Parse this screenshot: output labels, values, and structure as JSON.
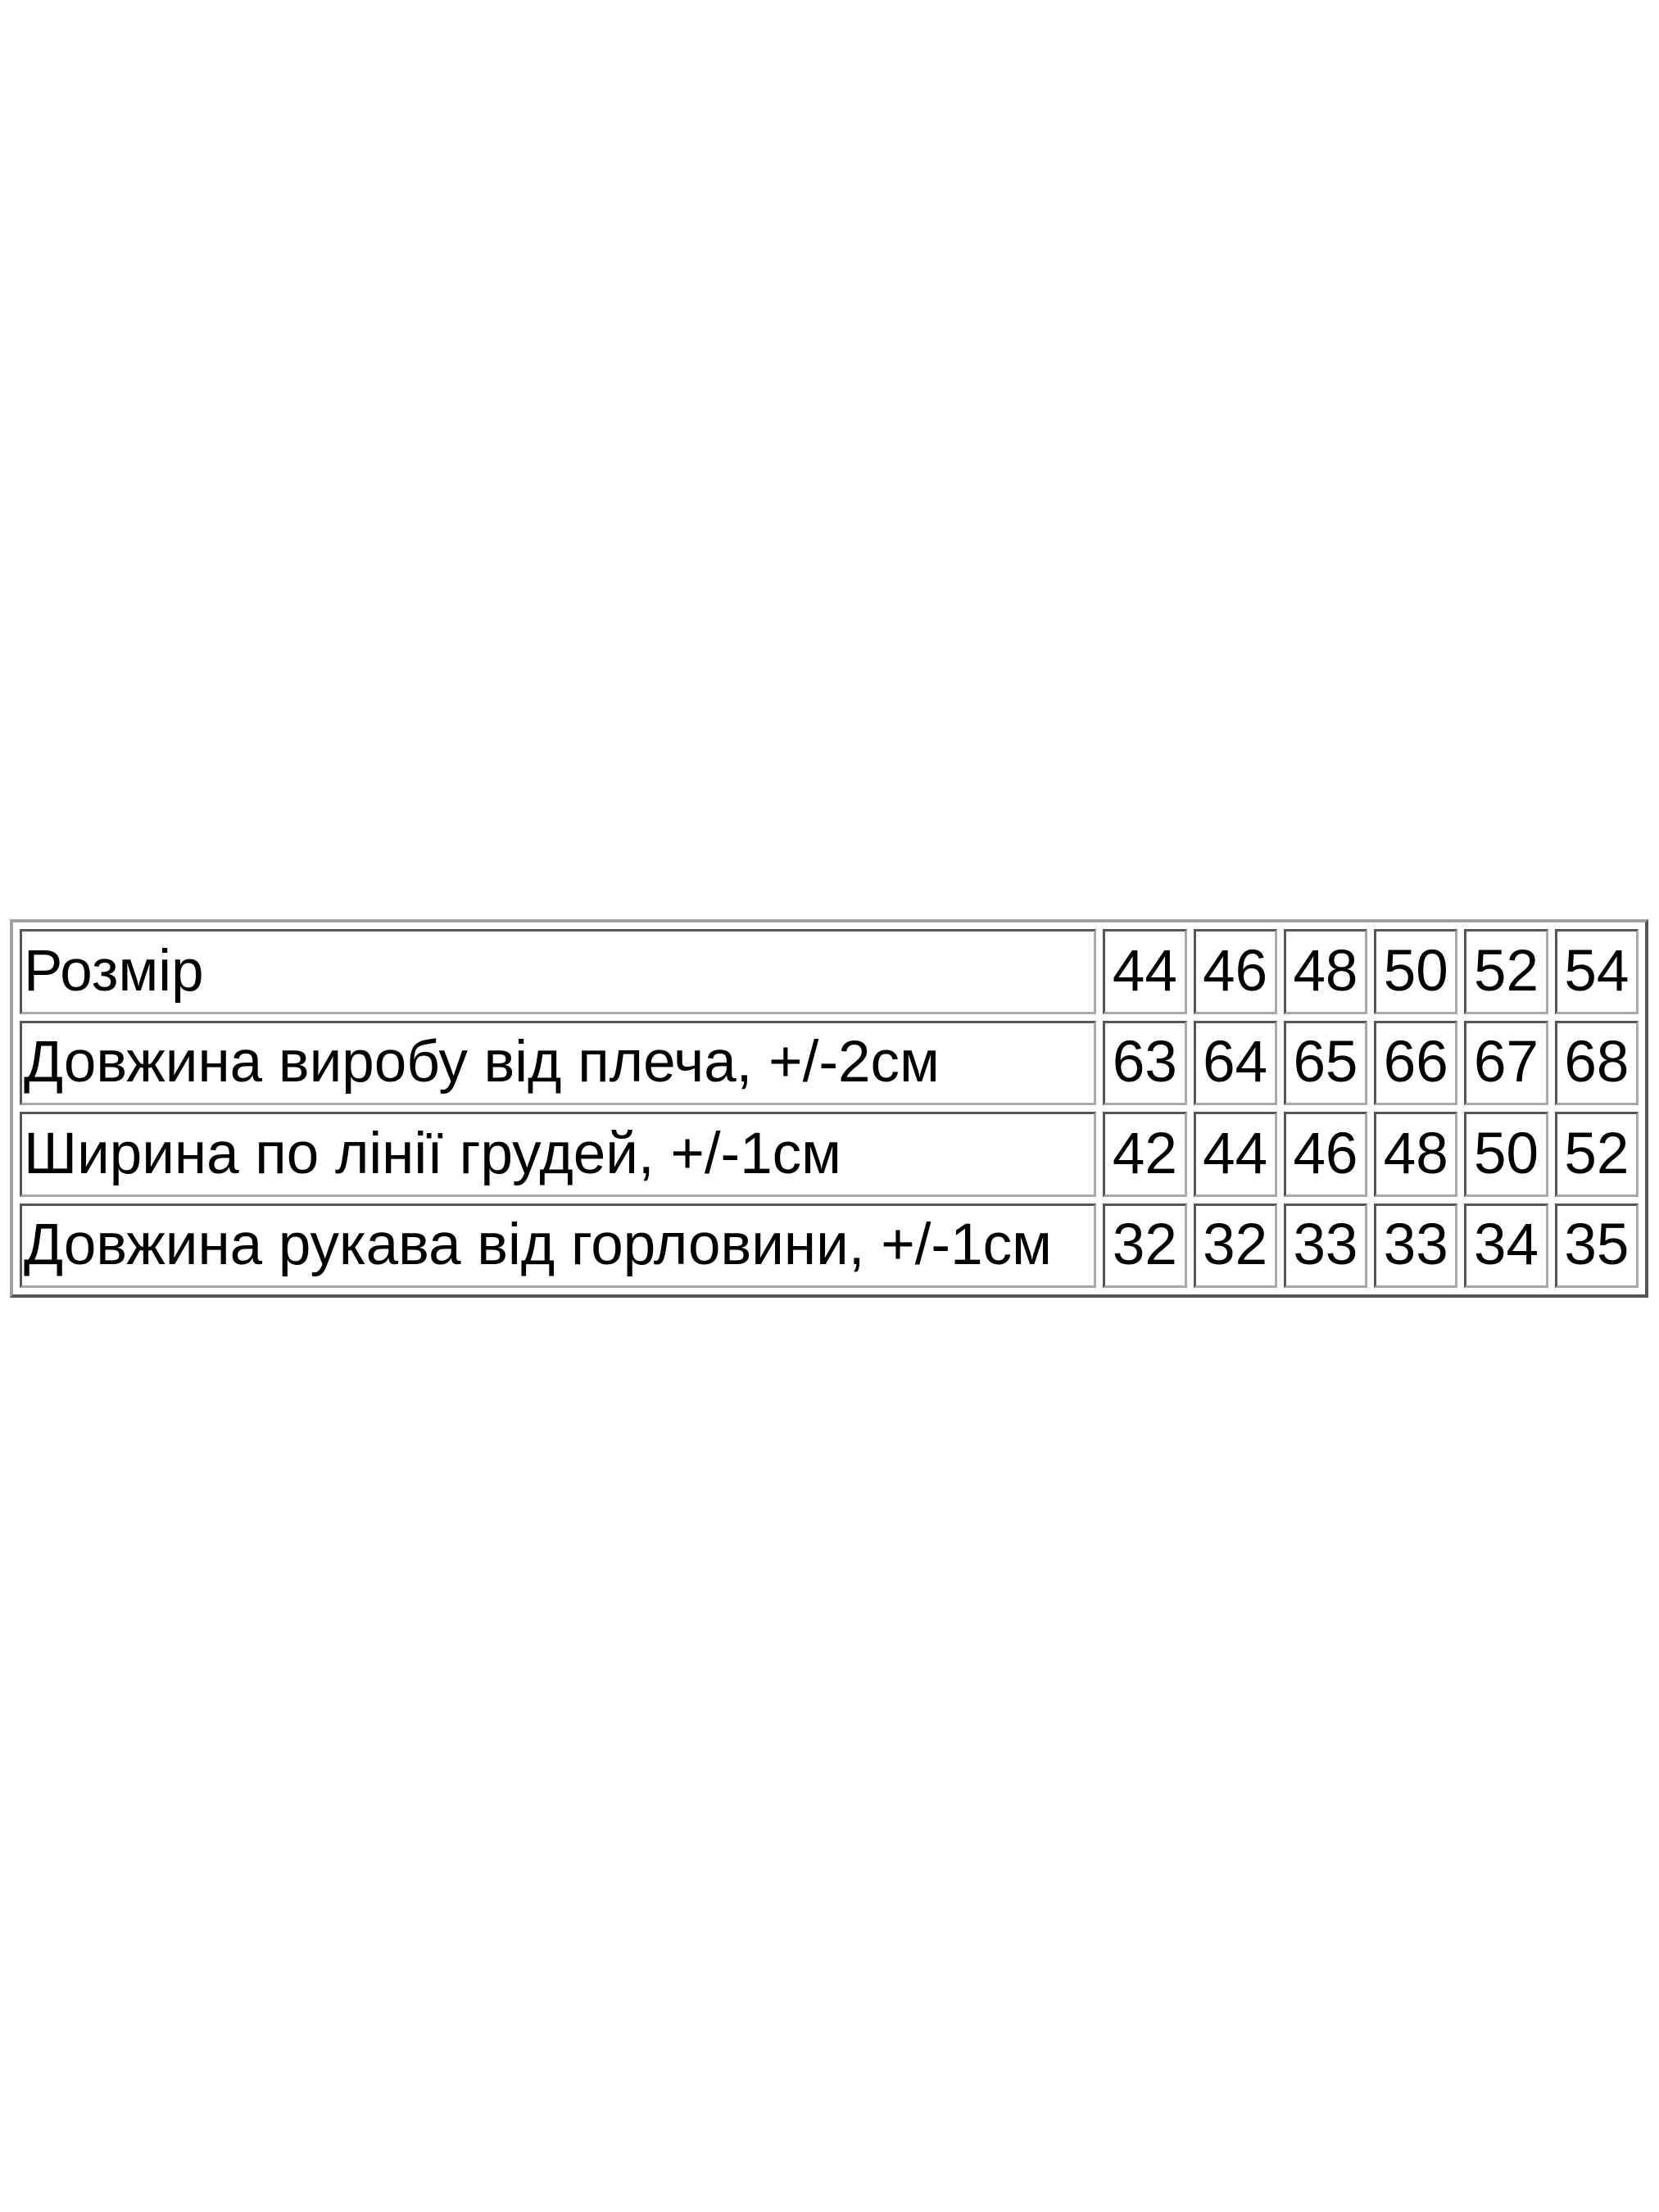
{
  "size_table": {
    "rows": [
      {
        "label": "Розмір",
        "values": [
          "44",
          "46",
          "48",
          "50",
          "52",
          "54"
        ]
      },
      {
        "label": "Довжина виробу від плеча, +/-2см",
        "values": [
          "63",
          "64",
          "65",
          "66",
          "67",
          "68"
        ]
      },
      {
        "label": "Ширина по лінії грудей, +/-1см",
        "values": [
          "42",
          "44",
          "46",
          "48",
          "50",
          "52"
        ]
      },
      {
        "label": "Довжина рукава від горловини, +/-1см",
        "values": [
          "32",
          "32",
          "33",
          "33",
          "34",
          "35"
        ]
      }
    ]
  }
}
